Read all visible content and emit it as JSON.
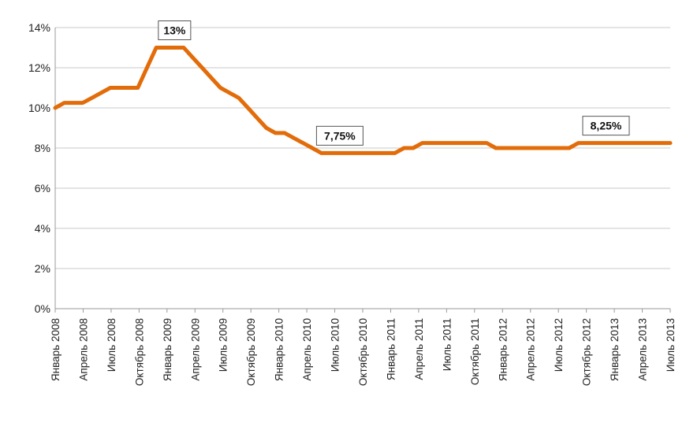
{
  "chart_data": {
    "type": "line",
    "title": "",
    "xlabel": "",
    "ylabel": "",
    "ylim": [
      0,
      14
    ],
    "y_ticks": [
      "0%",
      "2%",
      "4%",
      "6%",
      "8%",
      "10%",
      "12%",
      "14%"
    ],
    "x_tick_labels": [
      "Январь 2008",
      "Апрель 2008",
      "Июль 2008",
      "Октябрь 2008",
      "Январь 2009",
      "Апрель 2009",
      "Июль 2009",
      "Октябрь 2009",
      "Январь 2010",
      "Апрель 2010",
      "Июль 2010",
      "Октябрь 2010",
      "Январь 2011",
      "Апрель 2011",
      "Июль 2011",
      "Октябрь 2011",
      "Январь 2012",
      "Апрель 2012",
      "Июль 2012",
      "Октябрь 2012",
      "Январь 2013",
      "Апрель 2013",
      "Июль 2013"
    ],
    "grid": "horizontal",
    "line_color": "#E36C0A",
    "series": [
      {
        "x": [
          "2008-01",
          "2008-02",
          "2008-03",
          "2008-04",
          "2008-05",
          "2008-06",
          "2008-07",
          "2008-08",
          "2008-09",
          "2008-10",
          "2008-11",
          "2008-12",
          "2009-01",
          "2009-02",
          "2009-03",
          "2009-04",
          "2009-05",
          "2009-06",
          "2009-07",
          "2009-08",
          "2009-09",
          "2009-10",
          "2009-11",
          "2009-12",
          "2010-01",
          "2010-02",
          "2010-03",
          "2010-04",
          "2010-05",
          "2010-06",
          "2010-07",
          "2010-08",
          "2010-09",
          "2010-10",
          "2010-11",
          "2010-12",
          "2011-01",
          "2011-02",
          "2011-03",
          "2011-04",
          "2011-05",
          "2011-06",
          "2011-07",
          "2011-08",
          "2011-09",
          "2011-10",
          "2011-11",
          "2011-12",
          "2012-01",
          "2012-02",
          "2012-03",
          "2012-04",
          "2012-05",
          "2012-06",
          "2012-07",
          "2012-08",
          "2012-09",
          "2012-10",
          "2012-11",
          "2012-12",
          "2013-01",
          "2013-02",
          "2013-03",
          "2013-04",
          "2013-05",
          "2013-06",
          "2013-07",
          "2013-08"
        ],
        "values": [
          10,
          10.25,
          10.25,
          10.25,
          10.5,
          10.75,
          11,
          11,
          11,
          11,
          12,
          13,
          13,
          13,
          13,
          12.5,
          12,
          11.5,
          11,
          10.75,
          10.5,
          10,
          9.5,
          9,
          8.75,
          8.75,
          8.5,
          8.25,
          8,
          7.75,
          7.75,
          7.75,
          7.75,
          7.75,
          7.75,
          7.75,
          7.75,
          7.75,
          8,
          8,
          8.25,
          8.25,
          8.25,
          8.25,
          8.25,
          8.25,
          8.25,
          8.25,
          8,
          8,
          8,
          8,
          8,
          8,
          8,
          8,
          8,
          8.25,
          8.25,
          8.25,
          8.25,
          8.25,
          8.25,
          8.25,
          8.25,
          8.25,
          8.25,
          8.25
        ]
      }
    ],
    "annotations": [
      {
        "text": "13%",
        "x": "2009-02",
        "y": 13
      },
      {
        "text": "7,75%",
        "x": "2010-08",
        "y": 7.75
      },
      {
        "text": "8,25%",
        "x": "2013-01",
        "y": 8.25
      }
    ]
  }
}
